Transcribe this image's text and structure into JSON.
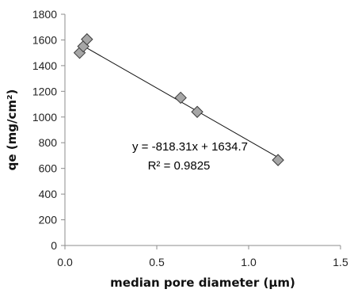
{
  "chart_data": {
    "type": "scatter",
    "title": "",
    "xlabel": "median pore diameter (μm)",
    "ylabel": "qe (mg/cm²)",
    "xlim": [
      0.0,
      1.5
    ],
    "ylim": [
      0,
      1800
    ],
    "xticks": [
      0.0,
      0.5,
      1.0,
      1.5
    ],
    "xtick_labels": [
      "0.0",
      "0.5",
      "1.0",
      "1.5"
    ],
    "yticks": [
      0,
      200,
      400,
      600,
      800,
      1000,
      1200,
      1400,
      1600,
      1800
    ],
    "ytick_labels": [
      "0",
      "200",
      "400",
      "600",
      "800",
      "1000",
      "1200",
      "1400",
      "1600",
      "1800"
    ],
    "grid": false,
    "legend": "none",
    "marker": "diamond",
    "marker_color": "#a6a6a6",
    "marker_edge_color": "#3a3a3a",
    "series": [
      {
        "x": [
          0.08,
          0.1,
          0.12,
          0.63,
          0.72,
          1.16
        ],
        "y": [
          1500,
          1550,
          1605,
          1150,
          1040,
          665
        ]
      }
    ],
    "trendline": {
      "type": "linear",
      "slope": -818.31,
      "intercept": 1634.7,
      "x_range": [
        0.08,
        1.16
      ]
    },
    "annotations": {
      "equation": "y = -818.31x + 1634.7",
      "r_squared": "R² = 0.9825"
    }
  }
}
